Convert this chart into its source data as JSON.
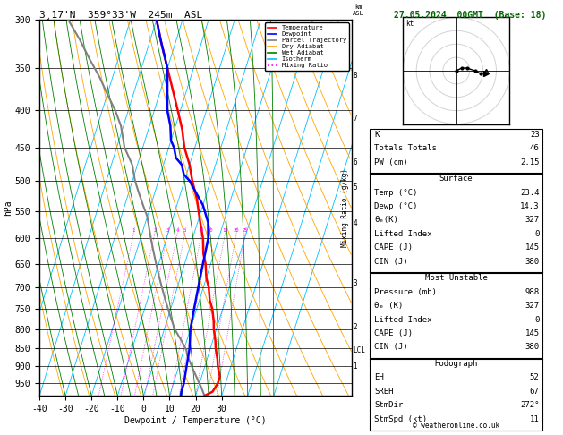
{
  "title_left": "3¸17'N  359°33'W  245m  ASL",
  "title_right": "27.05.2024  00GMT  (Base: 18)",
  "xlabel": "Dewpoint / Temperature (°C)",
  "ylabel_left": "hPa",
  "ylabel_mixing": "Mixing Ratio (g/kg)",
  "x_min": -40,
  "x_max": 35,
  "P_min": 300,
  "P_max": 988,
  "skew": 45,
  "pressure_ticks": [
    300,
    350,
    400,
    450,
    500,
    550,
    600,
    650,
    700,
    750,
    800,
    850,
    900,
    950
  ],
  "km_ticks": [
    8,
    7,
    6,
    5,
    4,
    3,
    2,
    1
  ],
  "km_pressures": [
    358,
    411,
    472,
    510,
    572,
    692,
    795,
    900
  ],
  "lcl_pressure": 855,
  "temp_pressure": [
    300,
    320,
    350,
    400,
    425,
    450,
    475,
    500,
    530,
    550,
    570,
    600,
    630,
    650,
    680,
    700,
    730,
    750,
    780,
    800,
    830,
    850,
    880,
    900,
    930,
    950,
    975,
    988
  ],
  "temp_values": [
    -40,
    -36,
    -30,
    -21,
    -17,
    -14,
    -10,
    -7,
    -3,
    -1,
    1,
    4,
    6,
    8,
    10,
    12,
    14,
    16,
    18,
    19,
    21,
    22,
    24,
    25,
    27,
    27,
    26,
    23.4
  ],
  "dewp_pressure": [
    300,
    320,
    350,
    400,
    420,
    440,
    450,
    465,
    475,
    490,
    500,
    510,
    540,
    570,
    600,
    650,
    700,
    750,
    800,
    850,
    900,
    950,
    975,
    988
  ],
  "dewp_values": [
    -40,
    -36,
    -30,
    -25,
    -22,
    -20,
    -18,
    -16,
    -13,
    -11,
    -8,
    -6,
    0,
    4,
    6,
    7,
    8,
    9,
    10,
    12,
    13,
    14,
    14,
    14.3
  ],
  "parcel_pressure": [
    988,
    960,
    930,
    900,
    870,
    855,
    830,
    800,
    770,
    750,
    720,
    700,
    680,
    650,
    620,
    600,
    580,
    560,
    540,
    520,
    500,
    475,
    450,
    420,
    400,
    380,
    360,
    340,
    320,
    300
  ],
  "parcel_values": [
    23.4,
    21,
    18,
    15,
    12,
    11,
    8,
    4,
    1,
    -1,
    -4,
    -6,
    -8,
    -11,
    -14,
    -16,
    -18,
    -20,
    -23,
    -26,
    -29,
    -32,
    -37,
    -41,
    -45,
    -50,
    -55,
    -61,
    -67,
    -74
  ],
  "mixing_ratio_lines": [
    1,
    2,
    3,
    4,
    5,
    8,
    10,
    15,
    20,
    25
  ],
  "color_temp": "#ff0000",
  "color_dewp": "#0000ff",
  "color_parcel": "#808080",
  "color_dry_adiabat": "#ffa500",
  "color_wet_adiabat": "#008000",
  "color_isotherm": "#00bfff",
  "color_mixing": "#ff00ff",
  "legend_items": [
    "Temperature",
    "Dewpoint",
    "Parcel Trajectory",
    "Dry Adiabat",
    "Wet Adiabat",
    "Isotherm",
    "Mixing Ratio"
  ],
  "legend_colors": [
    "#ff0000",
    "#0000ff",
    "#808080",
    "#ffa500",
    "#008000",
    "#00bfff",
    "#ff00ff"
  ],
  "legend_styles": [
    "solid",
    "solid",
    "solid",
    "solid",
    "solid",
    "solid",
    "dotted"
  ],
  "K": "23",
  "Totals_Totals": "46",
  "PW_cm": "2.15",
  "Surf_Temp": "23.4",
  "Surf_Dewp": "14.3",
  "Surf_ThetaE": "327",
  "Surf_LI": "0",
  "Surf_CAPE": "145",
  "Surf_CIN": "380",
  "MU_Press": "988",
  "MU_ThetaE": "327",
  "MU_LI": "0",
  "MU_CAPE": "145",
  "MU_CIN": "380",
  "Hodo_EH": "52",
  "Hodo_SREH": "67",
  "Hodo_StmDir": "272°",
  "Hodo_StmSpd": "11",
  "hodo_u": [
    0,
    2,
    4,
    7,
    9,
    11
  ],
  "hodo_v": [
    0,
    1,
    1,
    0,
    -1,
    -1
  ],
  "storm_u": 11,
  "storm_v": 0,
  "copyright": "© weatheronline.co.uk"
}
